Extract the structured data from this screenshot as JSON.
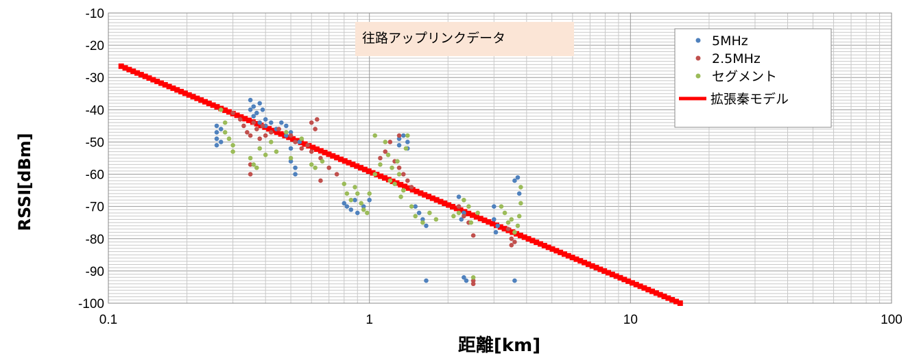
{
  "chart_data": {
    "type": "scatter",
    "title": "",
    "xlabel": "距離[km]",
    "ylabel": "RSSI[dBm]",
    "x_scale": "log",
    "xlim": [
      0.1,
      100
    ],
    "ylim": [
      -100,
      -10
    ],
    "x_ticks": [
      "0.1",
      "1",
      "10",
      "100"
    ],
    "y_ticks": [
      "-10",
      "-20",
      "-30",
      "-40",
      "-50",
      "-60",
      "-70",
      "-80",
      "-90",
      "-100"
    ],
    "grid": true,
    "legend_position": "top-right",
    "annotation": "往路アップリンクデータ",
    "series": [
      {
        "name": "5MHz",
        "marker": "dot",
        "color": "#4f81bd",
        "points": [
          [
            0.26,
            -45
          ],
          [
            0.26,
            -47
          ],
          [
            0.26,
            -49
          ],
          [
            0.26,
            -51
          ],
          [
            0.27,
            -46
          ],
          [
            0.27,
            -50
          ],
          [
            0.35,
            -37
          ],
          [
            0.35,
            -40
          ],
          [
            0.36,
            -39
          ],
          [
            0.36,
            -42
          ],
          [
            0.37,
            -41
          ],
          [
            0.38,
            -38
          ],
          [
            0.38,
            -44
          ],
          [
            0.39,
            -40
          ],
          [
            0.4,
            -43
          ],
          [
            0.4,
            -45
          ],
          [
            0.42,
            -44
          ],
          [
            0.44,
            -46
          ],
          [
            0.46,
            -44
          ],
          [
            0.48,
            -45
          ],
          [
            0.48,
            -48
          ],
          [
            0.5,
            -47
          ],
          [
            0.5,
            -52
          ],
          [
            0.5,
            -56
          ],
          [
            0.52,
            -58
          ],
          [
            0.52,
            -60
          ],
          [
            0.54,
            -50
          ],
          [
            0.8,
            -69
          ],
          [
            0.82,
            -70
          ],
          [
            0.85,
            -71
          ],
          [
            0.88,
            -68
          ],
          [
            0.9,
            -72
          ],
          [
            0.95,
            -70
          ],
          [
            1.0,
            -68
          ],
          [
            1.3,
            -49
          ],
          [
            1.3,
            -51
          ],
          [
            1.35,
            -48
          ],
          [
            1.4,
            -52
          ],
          [
            1.4,
            -50
          ],
          [
            1.5,
            -70
          ],
          [
            1.55,
            -72
          ],
          [
            1.6,
            -74
          ],
          [
            1.65,
            -76
          ],
          [
            1.65,
            -93
          ],
          [
            2.2,
            -67
          ],
          [
            2.2,
            -70
          ],
          [
            2.25,
            -74
          ],
          [
            2.3,
            -72
          ],
          [
            2.3,
            -92
          ],
          [
            2.35,
            -93
          ],
          [
            3.0,
            -70
          ],
          [
            3.0,
            -74
          ],
          [
            3.05,
            -78
          ],
          [
            3.1,
            -76
          ],
          [
            3.6,
            -62
          ],
          [
            3.7,
            -61
          ],
          [
            3.75,
            -66
          ],
          [
            3.6,
            -93
          ]
        ]
      },
      {
        "name": "2.5MHz",
        "marker": "dot",
        "color": "#c0504d",
        "points": [
          [
            0.3,
            -41
          ],
          [
            0.32,
            -43
          ],
          [
            0.33,
            -45
          ],
          [
            0.34,
            -47
          ],
          [
            0.35,
            -48
          ],
          [
            0.35,
            -57
          ],
          [
            0.35,
            -60
          ],
          [
            0.36,
            -44
          ],
          [
            0.37,
            -46
          ],
          [
            0.38,
            -49
          ],
          [
            0.39,
            -45
          ],
          [
            0.4,
            -48
          ],
          [
            0.42,
            -47
          ],
          [
            0.45,
            -46
          ],
          [
            0.5,
            -48
          ],
          [
            0.52,
            -50
          ],
          [
            0.55,
            -52
          ],
          [
            0.58,
            -51
          ],
          [
            0.6,
            -53
          ],
          [
            0.6,
            -44
          ],
          [
            0.62,
            -46
          ],
          [
            0.63,
            -43
          ],
          [
            0.65,
            -55
          ],
          [
            0.65,
            -62
          ],
          [
            0.7,
            -58
          ],
          [
            0.75,
            -60
          ],
          [
            1.1,
            -55
          ],
          [
            1.15,
            -53
          ],
          [
            1.2,
            -50
          ],
          [
            1.25,
            -56
          ],
          [
            1.3,
            -58
          ],
          [
            1.3,
            -48
          ],
          [
            1.35,
            -60
          ],
          [
            1.4,
            -62
          ],
          [
            1.45,
            -64
          ],
          [
            2.2,
            -70
          ],
          [
            2.3,
            -73
          ],
          [
            2.4,
            -75
          ],
          [
            2.5,
            -79
          ],
          [
            2.5,
            -93
          ],
          [
            2.5,
            -94
          ],
          [
            3.4,
            -77
          ],
          [
            3.5,
            -80
          ],
          [
            3.5,
            -82
          ],
          [
            3.6,
            -81
          ]
        ]
      },
      {
        "name": "セグメント",
        "marker": "dot",
        "color": "#9bbb59",
        "points": [
          [
            0.27,
            -40
          ],
          [
            0.28,
            -44
          ],
          [
            0.28,
            -47
          ],
          [
            0.29,
            -49
          ],
          [
            0.3,
            -51
          ],
          [
            0.3,
            -53
          ],
          [
            0.35,
            -55
          ],
          [
            0.36,
            -57
          ],
          [
            0.37,
            -58
          ],
          [
            0.38,
            -52
          ],
          [
            0.4,
            -54
          ],
          [
            0.42,
            -50
          ],
          [
            0.44,
            -53
          ],
          [
            0.48,
            -47
          ],
          [
            0.5,
            -55
          ],
          [
            0.55,
            -49
          ],
          [
            0.6,
            -57
          ],
          [
            0.62,
            -58
          ],
          [
            0.66,
            -56
          ],
          [
            0.8,
            -63
          ],
          [
            0.82,
            -66
          ],
          [
            0.85,
            -68
          ],
          [
            0.88,
            -64
          ],
          [
            0.9,
            -66
          ],
          [
            0.93,
            -69
          ],
          [
            0.95,
            -71
          ],
          [
            0.98,
            -72
          ],
          [
            1.0,
            -66
          ],
          [
            1.05,
            -60
          ],
          [
            1.05,
            -48
          ],
          [
            1.1,
            -57
          ],
          [
            1.15,
            -50
          ],
          [
            1.18,
            -54
          ],
          [
            1.2,
            -62
          ],
          [
            1.22,
            -58
          ],
          [
            1.25,
            -63
          ],
          [
            1.28,
            -56
          ],
          [
            1.3,
            -60
          ],
          [
            1.32,
            -67
          ],
          [
            1.35,
            -65
          ],
          [
            1.38,
            -52
          ],
          [
            1.4,
            -48
          ],
          [
            1.45,
            -70
          ],
          [
            1.5,
            -73
          ],
          [
            1.6,
            -75
          ],
          [
            1.7,
            -72
          ],
          [
            1.8,
            -74
          ],
          [
            2.1,
            -73
          ],
          [
            2.2,
            -72
          ],
          [
            2.3,
            -68
          ],
          [
            2.4,
            -70
          ],
          [
            2.45,
            -75
          ],
          [
            2.5,
            -92
          ],
          [
            2.6,
            -72
          ],
          [
            3.2,
            -70
          ],
          [
            3.3,
            -72
          ],
          [
            3.4,
            -75
          ],
          [
            3.5,
            -74
          ],
          [
            3.6,
            -78
          ],
          [
            3.7,
            -76
          ],
          [
            3.75,
            -73
          ],
          [
            3.8,
            -69
          ],
          [
            3.8,
            -64
          ]
        ]
      },
      {
        "name": "拡張秦モデル",
        "marker": "line",
        "color": "#ff0000",
        "x": [
          0.112,
          15.5
        ],
        "y": [
          -26.5,
          -100
        ]
      }
    ]
  }
}
